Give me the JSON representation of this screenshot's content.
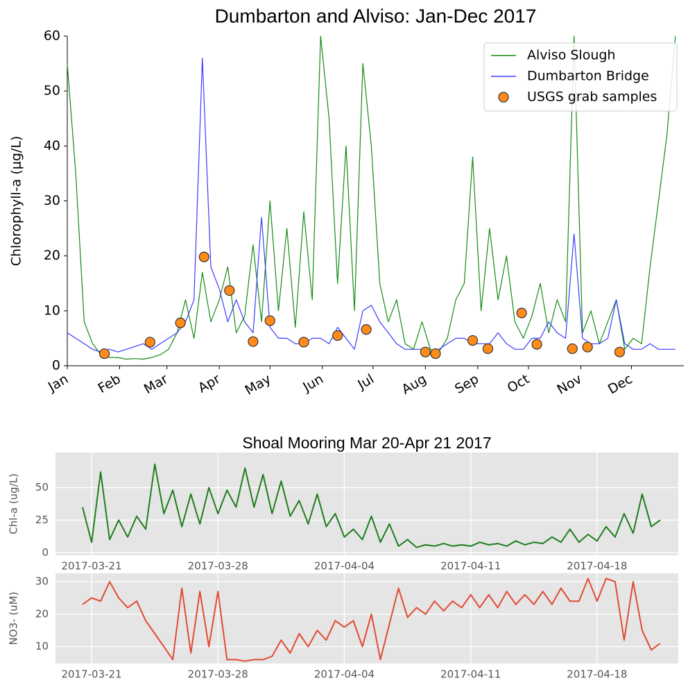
{
  "chart_data": [
    {
      "type": "line",
      "title": "Dumbarton and Alviso: Jan-Dec 2017",
      "ylabel": "Chlorophyll-a  (μg/L)",
      "xlim": [
        0,
        365
      ],
      "xticks": [
        {
          "value": 0,
          "label": "Jan"
        },
        {
          "value": 31,
          "label": "Feb"
        },
        {
          "value": 59,
          "label": "Mar"
        },
        {
          "value": 90,
          "label": "Apr"
        },
        {
          "value": 120,
          "label": "May"
        },
        {
          "value": 151,
          "label": "Jun"
        },
        {
          "value": 181,
          "label": "Jul"
        },
        {
          "value": 212,
          "label": "Aug"
        },
        {
          "value": 243,
          "label": "Sep"
        },
        {
          "value": 273,
          "label": "Oct"
        },
        {
          "value": 304,
          "label": "Nov"
        },
        {
          "value": 334,
          "label": "Dec"
        }
      ],
      "ylim": [
        0,
        60
      ],
      "yticks": [
        0,
        10,
        20,
        30,
        40,
        50,
        60
      ],
      "grid": false,
      "legend": "upper right",
      "x": [
        0,
        5,
        10,
        15,
        20,
        25,
        30,
        35,
        40,
        45,
        50,
        55,
        60,
        65,
        70,
        75,
        80,
        85,
        90,
        95,
        100,
        105,
        110,
        115,
        120,
        125,
        130,
        135,
        140,
        145,
        150,
        155,
        160,
        165,
        170,
        175,
        180,
        185,
        190,
        195,
        200,
        205,
        210,
        215,
        220,
        225,
        230,
        235,
        240,
        245,
        250,
        255,
        260,
        265,
        270,
        275,
        280,
        285,
        290,
        295,
        300,
        305,
        310,
        315,
        320,
        325,
        330,
        335,
        340,
        345,
        350,
        355,
        360
      ],
      "series": [
        {
          "name": "Alviso Slough",
          "color": "#138a13",
          "values": [
            55,
            35,
            8,
            4,
            2,
            1.5,
            1.5,
            1.2,
            1.3,
            1.2,
            1.5,
            2,
            3,
            6,
            12,
            5,
            17,
            8,
            12,
            18,
            6,
            9,
            22,
            8,
            30,
            10,
            25,
            7,
            28,
            12,
            60,
            45,
            15,
            40,
            10,
            55,
            40,
            15,
            8,
            12,
            4,
            3,
            8,
            3,
            2.5,
            5,
            12,
            15,
            38,
            10,
            25,
            12,
            20,
            8,
            5,
            9,
            15,
            6,
            12,
            8,
            60,
            6,
            10,
            4,
            8,
            12,
            3,
            5,
            4,
            18,
            30,
            42,
            60
          ]
        },
        {
          "name": "Dumbarton Bridge",
          "color": "#3a3aff",
          "values": [
            6,
            5,
            4,
            3,
            2.5,
            3,
            2.5,
            3,
            3.5,
            4,
            3,
            4,
            5,
            6,
            8,
            12,
            56,
            18,
            14,
            8,
            12,
            8,
            6,
            27,
            7,
            5,
            5,
            4,
            4,
            5,
            5,
            4,
            7,
            5,
            3,
            10,
            11,
            8,
            6,
            4,
            3,
            3,
            3,
            2.5,
            3,
            4,
            5,
            5,
            4,
            4,
            4,
            6,
            4,
            3,
            3,
            5,
            5,
            8,
            6,
            5,
            24,
            5,
            4,
            4,
            5,
            12,
            4,
            3,
            3,
            4,
            3,
            3,
            3
          ]
        },
        {
          "name": "USGS grab samples",
          "type": "scatter",
          "color": "#ff8c1a",
          "x": [
            22,
            49,
            67,
            81,
            96,
            110,
            120,
            140,
            160,
            177,
            212,
            218,
            240,
            249,
            269,
            278,
            299,
            308,
            327
          ],
          "values": [
            2.2,
            4.3,
            7.8,
            19.8,
            13.7,
            4.4,
            8.2,
            4.3,
            5.5,
            6.6,
            2.5,
            2.2,
            4.6,
            3.1,
            9.6,
            3.9,
            3.1,
            3.4,
            2.5
          ]
        }
      ]
    },
    {
      "type": "line",
      "title": "Shoal Mooring Mar 20-Apr 21 2017",
      "ylabel": "Chl-a (ug/L)",
      "xlim": [
        -2,
        32.5
      ],
      "xticks": [
        {
          "value": 0,
          "label": "2017-03-21"
        },
        {
          "value": 7,
          "label": "2017-03-28"
        },
        {
          "value": 14,
          "label": "2017-04-04"
        },
        {
          "value": 21,
          "label": "2017-04-11"
        },
        {
          "value": 28,
          "label": "2017-04-18"
        }
      ],
      "ylim": [
        -2,
        77
      ],
      "yticks": [
        0,
        25,
        50
      ],
      "grid": true,
      "x": [
        -0.5,
        0,
        0.5,
        1,
        1.5,
        2,
        2.5,
        3,
        3.5,
        4,
        4.5,
        5,
        5.5,
        6,
        6.5,
        7,
        7.5,
        8,
        8.5,
        9,
        9.5,
        10,
        10.5,
        11,
        11.5,
        12,
        12.5,
        13,
        13.5,
        14,
        14.5,
        15,
        15.5,
        16,
        16.5,
        17,
        17.5,
        18,
        18.5,
        19,
        19.5,
        20,
        20.5,
        21,
        21.5,
        22,
        22.5,
        23,
        23.5,
        24,
        24.5,
        25,
        25.5,
        26,
        26.5,
        27,
        27.5,
        28,
        28.5,
        29,
        29.5,
        30,
        30.5,
        31,
        31.5
      ],
      "series": [
        {
          "name": "Chl-a",
          "color": "#1e7d1e",
          "values": [
            35,
            8,
            62,
            10,
            25,
            12,
            28,
            18,
            68,
            30,
            48,
            20,
            45,
            22,
            50,
            30,
            48,
            35,
            65,
            35,
            60,
            30,
            55,
            28,
            40,
            22,
            45,
            20,
            30,
            12,
            18,
            10,
            28,
            8,
            22,
            5,
            10,
            4,
            6,
            5,
            7,
            5,
            6,
            5,
            8,
            6,
            7,
            5,
            9,
            6,
            8,
            7,
            12,
            8,
            18,
            8,
            14,
            9,
            20,
            12,
            30,
            15,
            45,
            20,
            25
          ]
        }
      ]
    },
    {
      "type": "line",
      "ylabel": "NO3- (uM)",
      "xlim": [
        -2,
        32.5
      ],
      "xticks": [
        {
          "value": 0,
          "label": "2017-03-21"
        },
        {
          "value": 7,
          "label": "2017-03-28"
        },
        {
          "value": 14,
          "label": "2017-04-04"
        },
        {
          "value": 21,
          "label": "2017-04-11"
        },
        {
          "value": 28,
          "label": "2017-04-18"
        }
      ],
      "ylim": [
        4.8,
        32.6
      ],
      "yticks": [
        10,
        20,
        30
      ],
      "grid": true,
      "x": [
        -0.5,
        0,
        0.5,
        1,
        1.5,
        2,
        2.5,
        3,
        3.5,
        4,
        4.5,
        5,
        5.5,
        6,
        6.5,
        7,
        7.5,
        8,
        8.5,
        9,
        9.5,
        10,
        10.5,
        11,
        11.5,
        12,
        12.5,
        13,
        13.5,
        14,
        14.5,
        15,
        15.5,
        16,
        16.5,
        17,
        17.5,
        18,
        18.5,
        19,
        19.5,
        20,
        20.5,
        21,
        21.5,
        22,
        22.5,
        23,
        23.5,
        24,
        24.5,
        25,
        25.5,
        26,
        26.5,
        27,
        27.5,
        28,
        28.5,
        29,
        29.5,
        30,
        30.5,
        31,
        31.5
      ],
      "series": [
        {
          "name": "NO3-",
          "color": "#e24a33",
          "values": [
            23,
            25,
            24,
            30,
            25,
            22,
            24,
            18,
            14,
            10,
            6,
            28,
            8,
            27,
            10,
            27,
            6,
            6,
            5.5,
            6,
            6,
            7,
            12,
            8,
            14,
            10,
            15,
            12,
            18,
            16,
            18,
            10,
            20,
            6,
            17,
            28,
            19,
            22,
            20,
            24,
            21,
            24,
            22,
            26,
            22,
            26,
            22,
            27,
            23,
            26,
            23,
            27,
            23,
            28,
            24,
            24,
            31,
            24,
            31,
            30,
            12,
            30,
            15,
            9,
            11
          ]
        }
      ]
    }
  ]
}
